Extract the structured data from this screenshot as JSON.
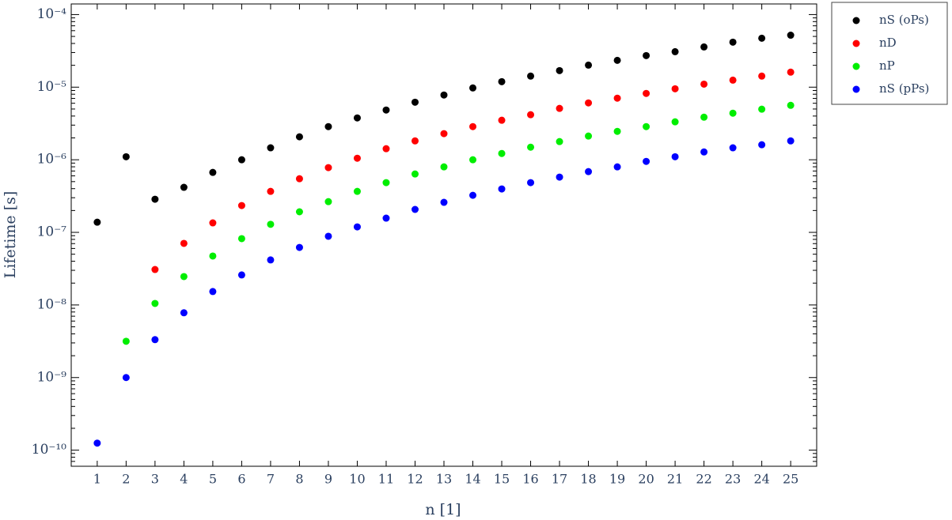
{
  "chart_data": {
    "type": "scatter",
    "x_label": "n [1]",
    "y_label": "Lifetime [s]",
    "log_y": true,
    "legend": "outside-top-right",
    "x": [
      1,
      2,
      3,
      4,
      5,
      6,
      7,
      8,
      9,
      10,
      11,
      12,
      13,
      14,
      15,
      16,
      17,
      18,
      19,
      20,
      21,
      22,
      23,
      24,
      25
    ],
    "xlim": [
      0.1,
      25.9
    ],
    "xticks": [
      1,
      2,
      3,
      4,
      5,
      6,
      7,
      8,
      9,
      10,
      11,
      12,
      13,
      14,
      15,
      16,
      17,
      18,
      19,
      20,
      21,
      22,
      23,
      24,
      25
    ],
    "ylim": [
      6e-11,
      0.00014
    ],
    "yticks": [
      {
        "value": 1e-10,
        "label": "10⁻¹⁰"
      },
      {
        "value": 1e-09,
        "label": "10⁻⁹"
      },
      {
        "value": 1e-08,
        "label": "10⁻⁸"
      },
      {
        "value": 1e-07,
        "label": "10⁻⁷"
      },
      {
        "value": 1e-06,
        "label": "10⁻⁶"
      },
      {
        "value": 1e-05,
        "label": "10⁻⁵"
      },
      {
        "value": 0.0001,
        "label": "10⁻⁴"
      }
    ],
    "series": [
      {
        "name": "nS (oPs)",
        "color": "#000000",
        "values": [
          1.38e-07,
          1.1e-06,
          2.86e-07,
          4.17e-07,
          6.7e-07,
          1e-06,
          1.46e-06,
          2.07e-06,
          2.86e-06,
          3.77e-06,
          4.84e-06,
          6.2e-06,
          7.8e-06,
          9.75e-06,
          1.19e-05,
          1.42e-05,
          1.69e-05,
          2.01e-05,
          2.34e-05,
          2.72e-05,
          3.08e-05,
          3.58e-05,
          4.17e-05,
          4.72e-05,
          5.2e-05
        ]
      },
      {
        "name": "nD",
        "color": "#ff0000",
        "values": [
          null,
          null,
          3.08e-08,
          7.05e-08,
          1.35e-07,
          2.34e-07,
          3.67e-07,
          5.48e-07,
          7.8e-07,
          1.05e-06,
          1.42e-06,
          1.82e-06,
          2.29e-06,
          2.86e-06,
          3.5e-06,
          4.17e-06,
          5.1e-06,
          6.07e-06,
          7.05e-06,
          8.2e-06,
          9.5e-06,
          1.1e-05,
          1.25e-05,
          1.42e-05,
          1.61e-05
        ]
      },
      {
        "name": "nP",
        "color": "#00ee00",
        "values": [
          null,
          3.16e-09,
          1.05e-08,
          2.46e-08,
          4.72e-08,
          8.2e-08,
          1.29e-07,
          1.92e-07,
          2.65e-07,
          3.67e-07,
          4.84e-07,
          6.37e-07,
          7.98e-07,
          1e-06,
          1.22e-06,
          1.49e-06,
          1.78e-06,
          2.12e-06,
          2.46e-06,
          2.86e-06,
          3.33e-06,
          3.86e-06,
          4.38e-06,
          4.97e-06,
          5.62e-06
        ]
      },
      {
        "name": "nS (pPs)",
        "color": "#0000ff",
        "values": [
          1.25e-10,
          1e-09,
          3.33e-09,
          7.8e-09,
          1.53e-08,
          2.59e-08,
          4.17e-08,
          6.2e-08,
          8.83e-08,
          1.19e-07,
          1.57e-07,
          2.07e-07,
          2.59e-07,
          3.24e-07,
          3.96e-07,
          4.84e-07,
          5.77e-07,
          6.87e-07,
          7.98e-07,
          9.5e-07,
          1.1e-06,
          1.28e-06,
          1.46e-06,
          1.61e-06,
          1.82e-06
        ]
      }
    ]
  }
}
